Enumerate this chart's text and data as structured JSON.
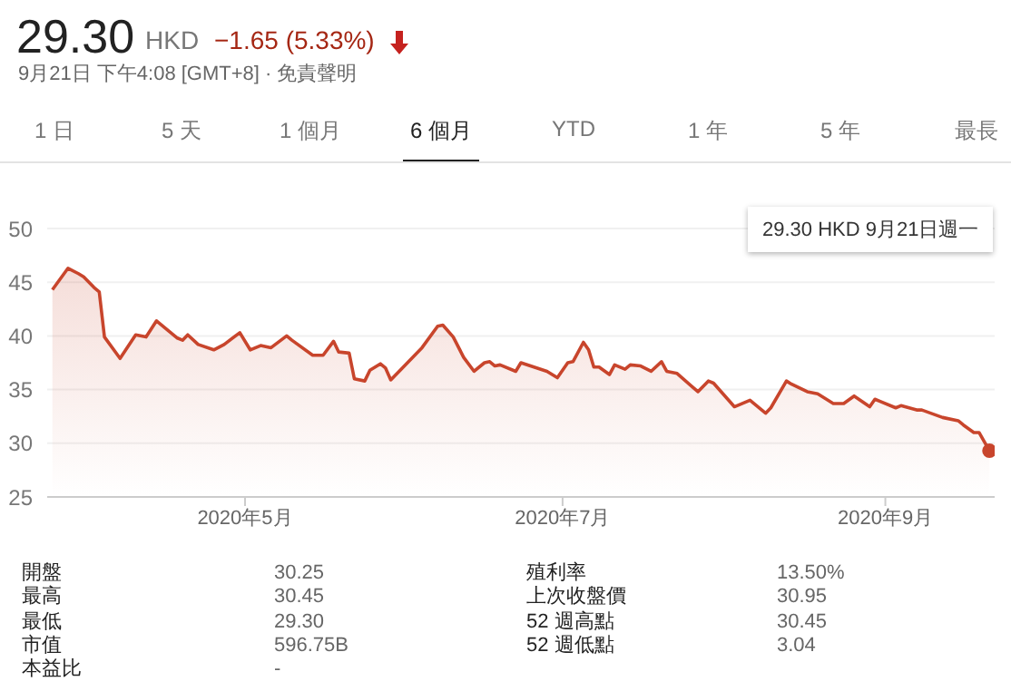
{
  "chart_data": {
    "type": "area",
    "title": "29.30",
    "annotations": [
      "HKD",
      "−1.65 (5.33%)",
      "9月21日 下午4:08 [GMT+8] · 免責聲明",
      "1 日",
      "5 天",
      "1 個月",
      "6 個月",
      "YTD",
      "1 年",
      "5 年",
      "最長",
      "29.30 HKD  9月21日週一",
      "開盤",
      "30.25",
      "最高",
      "30.45",
      "最低",
      "29.30",
      "市值",
      "596.75B",
      "本益比",
      "-",
      "殖利率",
      "13.50%",
      "上次收盤價",
      "30.95",
      "52 週高點",
      "30.45",
      "52 週低點",
      "3.04"
    ],
    "x": [
      "2020-03-25",
      "2020-03-28",
      "2020-03-30",
      "2020-03-31",
      "2020-04-02",
      "2020-04-03",
      "2020-04-04",
      "2020-04-07",
      "2020-04-10",
      "2020-04-12",
      "2020-04-14",
      "2020-04-18",
      "2020-04-19",
      "2020-04-20",
      "2020-04-22",
      "2020-04-25",
      "2020-04-27",
      "2020-04-30",
      "2020-05-02",
      "2020-05-04",
      "2020-05-06",
      "2020-05-09",
      "2020-05-10",
      "2020-05-14",
      "2020-05-16",
      "2020-05-18",
      "2020-05-19",
      "2020-05-21",
      "2020-05-22",
      "2020-05-24",
      "2020-05-25",
      "2020-05-27",
      "2020-05-28",
      "2020-05-29",
      "2020-06-01",
      "2020-06-04",
      "2020-06-07",
      "2020-06-08",
      "2020-06-10",
      "2020-06-12",
      "2020-06-14",
      "2020-06-16",
      "2020-06-17",
      "2020-06-18",
      "2020-06-19",
      "2020-06-22",
      "2020-06-23",
      "2020-06-28",
      "2020-06-30",
      "2020-07-02",
      "2020-07-03",
      "2020-07-05",
      "2020-07-06",
      "2020-07-07",
      "2020-07-08",
      "2020-07-10",
      "2020-07-11",
      "2020-07-13",
      "2020-07-14",
      "2020-07-16",
      "2020-07-18",
      "2020-07-20",
      "2020-07-21",
      "2020-07-23",
      "2020-07-27",
      "2020-07-29",
      "2020-07-30",
      "2020-08-03",
      "2020-08-06",
      "2020-08-09",
      "2020-08-10",
      "2020-08-13",
      "2020-08-14",
      "2020-08-17",
      "2020-08-19",
      "2020-08-22",
      "2020-08-24",
      "2020-08-26",
      "2020-08-29",
      "2020-08-30",
      "2020-08-31",
      "2020-09-03",
      "2020-09-04",
      "2020-09-07",
      "2020-09-08",
      "2020-09-12",
      "2020-09-15",
      "2020-09-16",
      "2020-09-18",
      "2020-09-19",
      "2020-09-21"
    ],
    "series": [
      {
        "color": "#c8452c",
        "values": [
          44.3,
          46.3,
          45.8,
          45.5,
          44.5,
          44.1,
          39.9,
          37.9,
          40.1,
          39.9,
          41.4,
          39.8,
          39.6,
          40.1,
          39.2,
          38.7,
          39.2,
          40.3,
          38.7,
          39.1,
          38.9,
          40.0,
          39.6,
          38.2,
          38.2,
          39.5,
          38.5,
          38.4,
          36.0,
          35.8,
          36.8,
          37.4,
          37.0,
          35.9,
          37.4,
          38.9,
          40.9,
          41.0,
          39.9,
          38.0,
          36.7,
          37.5,
          37.6,
          37.2,
          37.3,
          36.7,
          37.5,
          36.7,
          36.1,
          37.5,
          37.6,
          39.4,
          38.7,
          37.1,
          37.1,
          36.4,
          37.3,
          36.9,
          37.3,
          37.2,
          36.7,
          37.6,
          36.7,
          36.5,
          34.8,
          35.8,
          35.6,
          33.4,
          34.0,
          32.8,
          33.3,
          35.8,
          35.5,
          34.8,
          34.6,
          33.7,
          33.7,
          34.4,
          33.4,
          34.1,
          33.9,
          33.3,
          33.5,
          33.1,
          33.1,
          32.4,
          32.1,
          31.7,
          31.0,
          31.0,
          29.3
        ]
      }
    ],
    "xlim": [
      "2020-03-24",
      "2020-09-22"
    ],
    "xticks": [
      {
        "value": "2020-05-01",
        "label": "2020年5月"
      },
      {
        "value": "2020-07-01",
        "label": "2020年7月"
      },
      {
        "value": "2020-09-01",
        "label": "2020年9月"
      }
    ],
    "ylim": [
      25,
      50
    ],
    "yticks": [
      25,
      30,
      35,
      40,
      45,
      50
    ],
    "grid": "y",
    "marker": "none",
    "line_style": "solid"
  }
}
